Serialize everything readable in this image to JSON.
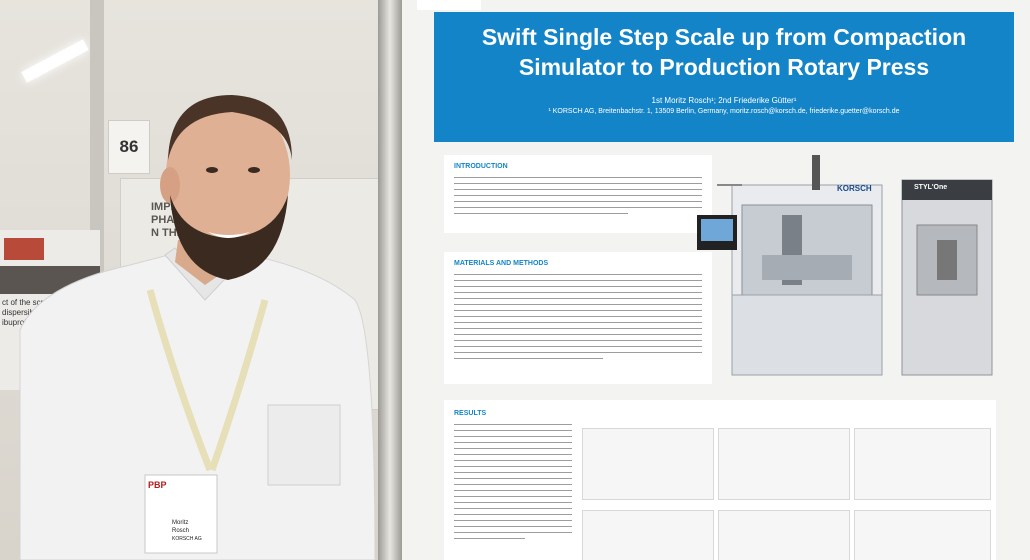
{
  "background": {
    "booth_number": "86",
    "side_poster_lines": [
      "IMPROVEMENT P",
      "PHARMACEUTICAL P",
      "N THE QbD APPRO"
    ],
    "left_poster_caption": "ct of the screw configur dispersible eutectic and ibuprofen"
  },
  "poster": {
    "title_line1": "Swift Single Step Scale up from Compaction",
    "title_line2": "Simulator to Production Rotary Press",
    "authors": "1st Moritz Rosch¹; 2nd Friederike Gütter¹",
    "affiliation": "¹ KORSCH AG, Breitenbachstr. 1, 13509 Berlin, Germany, moritz.rosch@korsch.de, friederike.guetter@korsch.de",
    "sections": {
      "introduction": "INTRODUCTION",
      "materials": "MATERIALS AND METHODS",
      "results": "RESULTS"
    },
    "machine_brand_1": "KORSCH",
    "machine_brand_2": "STYL'One"
  },
  "badge": {
    "event": "PBP",
    "name": "Moritz",
    "surname": "Rosch",
    "company": "KORSCH AG"
  },
  "colors": {
    "poster_blue": "#1484c8",
    "shirt": "#f2f2f2",
    "beard": "#3a2a20"
  }
}
